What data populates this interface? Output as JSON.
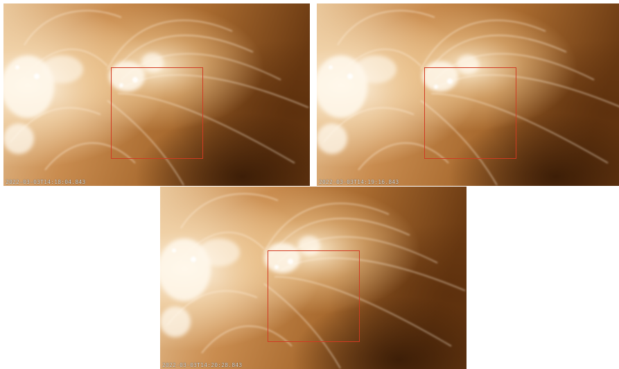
{
  "panels": [
    {
      "id": "p1",
      "timestamp": "2022-03-03T14:18:04.843"
    },
    {
      "id": "p2",
      "timestamp": "2022-03-03T14:19:16.843"
    },
    {
      "id": "p3",
      "timestamp": "2022-03-03T14:20:28.843"
    }
  ],
  "colors": {
    "roi_box": "#d23a22",
    "background": "#ffffff",
    "tone_dark": "#6a3a12",
    "tone_light": "#fff4e0"
  }
}
